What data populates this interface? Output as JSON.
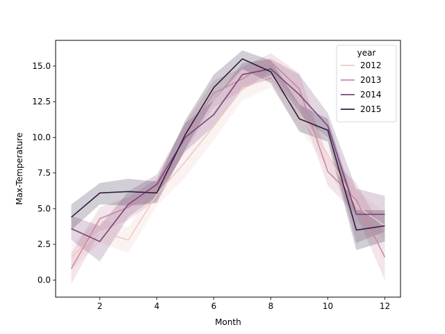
{
  "chart_data": {
    "type": "line",
    "title": "",
    "xlabel": "Month",
    "ylabel": "Max-Temperature",
    "xlim": [
      0.45,
      12.55
    ],
    "ylim": [
      -1.2,
      16.8
    ],
    "xticks": [
      2,
      4,
      6,
      8,
      10,
      12
    ],
    "yticks": [
      0.0,
      2.5,
      5.0,
      7.5,
      10.0,
      12.5,
      15.0
    ],
    "ytick_labels": [
      "0.0",
      "2.5",
      "5.0",
      "7.5",
      "10.0",
      "12.5",
      "15.0"
    ],
    "legend": {
      "title": "year",
      "position": "top-right"
    },
    "x": [
      1,
      2,
      3,
      4,
      5,
      6,
      7,
      8,
      9,
      10,
      11,
      12
    ],
    "series": [
      {
        "name": "2012",
        "color": "#efc9c3",
        "values": [
          1.6,
          3.4,
          2.8,
          6.0,
          8.3,
          10.8,
          13.4,
          14.3,
          11.7,
          8.8,
          5.2,
          3.8
        ],
        "ci_lower": [
          0.7,
          2.6,
          1.9,
          5.2,
          7.2,
          9.8,
          12.6,
          13.5,
          10.6,
          7.9,
          4.0,
          2.9
        ],
        "ci_upper": [
          2.5,
          4.2,
          3.7,
          6.8,
          9.3,
          11.9,
          14.2,
          15.1,
          12.8,
          9.7,
          6.3,
          4.7
        ]
      },
      {
        "name": "2013",
        "color": "#c98aa0",
        "values": [
          0.8,
          4.3,
          5.1,
          6.4,
          10.1,
          13.1,
          14.1,
          15.3,
          13.4,
          7.6,
          5.6,
          1.6
        ],
        "ci_lower": [
          -0.3,
          3.4,
          4.2,
          5.6,
          9.1,
          12.1,
          13.3,
          14.6,
          12.2,
          6.6,
          4.6,
          0.0
        ],
        "ci_upper": [
          1.9,
          5.1,
          5.8,
          7.1,
          11.0,
          14.0,
          14.9,
          15.9,
          14.5,
          8.6,
          6.8,
          3.2
        ]
      },
      {
        "name": "2014",
        "color": "#7c4478",
        "values": [
          3.6,
          2.7,
          5.3,
          6.7,
          10.0,
          11.6,
          14.4,
          14.8,
          13.0,
          10.8,
          4.6,
          4.6
        ],
        "ci_lower": [
          2.8,
          1.3,
          4.4,
          5.9,
          9.0,
          10.8,
          13.5,
          14.1,
          11.6,
          10.0,
          2.6,
          3.4
        ],
        "ci_upper": [
          4.5,
          3.8,
          6.2,
          7.4,
          11.0,
          12.6,
          15.2,
          15.5,
          14.4,
          11.7,
          6.4,
          5.9
        ]
      },
      {
        "name": "2015",
        "color": "#2d1e3e",
        "values": [
          4.4,
          6.1,
          6.2,
          6.1,
          10.2,
          13.5,
          15.5,
          14.6,
          11.3,
          10.5,
          3.5,
          3.8
        ],
        "ci_lower": [
          3.5,
          5.3,
          5.2,
          5.4,
          9.2,
          12.6,
          14.8,
          13.8,
          10.4,
          9.7,
          2.1,
          2.7
        ],
        "ci_upper": [
          5.3,
          6.8,
          7.1,
          6.9,
          11.2,
          14.4,
          16.1,
          15.4,
          12.3,
          11.3,
          4.9,
          4.9
        ]
      }
    ]
  }
}
